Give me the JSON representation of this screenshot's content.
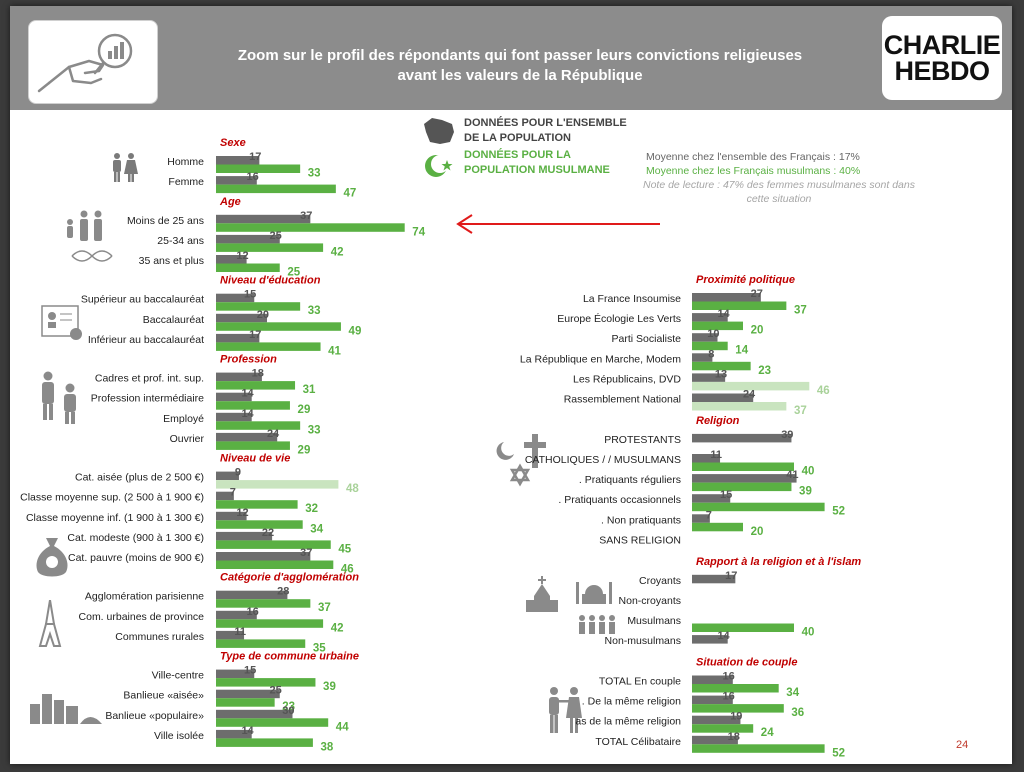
{
  "title_line1": "Zoom sur le profil des répondants qui font passer leurs convictions religieuses",
  "title_line2": "avant les valeurs de la République",
  "logo_line1": "CHARLIE",
  "logo_line2": "HEBDO",
  "legend": {
    "all_line1": "DONNÉES POUR L'ENSEMBLE",
    "all_line2": "DE LA POPULATION",
    "muslim_line1": "DONNÉES POUR LA",
    "muslim_line2": "POPULATION MUSULMANE"
  },
  "notes": {
    "avg_all": "Moyenne chez l'ensemble des Français : 17%",
    "avg_muslim": "Moyenne chez les Français musulmans : 40%",
    "reading_line1": "Note de lecture : 47% des femmes musulmanes sont dans",
    "reading_line2": "cette situation"
  },
  "page_number": "24",
  "colors": {
    "all": "#6d6d6d",
    "muslim": "#5ab043",
    "muslim_light": "#c9e4bf",
    "section_title": "#c00000",
    "arrow": "#e01a1a"
  },
  "chart_data": {
    "type": "bar",
    "orientation": "horizontal",
    "series": [
      {
        "name": "DONNÉES POUR L'ENSEMBLE DE LA POPULATION"
      },
      {
        "name": "DONNÉES POUR LA POPULATION MUSULMANE"
      }
    ],
    "columns": [
      [
        {
          "title": "Sexe",
          "rows": [
            {
              "label": "Homme",
              "all": 17,
              "muslim": 33
            },
            {
              "label": "Femme",
              "all": 16,
              "muslim": 47
            }
          ]
        },
        {
          "title": "Age",
          "rows": [
            {
              "label": "Moins de 25 ans",
              "all": 37,
              "muslim": 74
            },
            {
              "label": "25-34 ans",
              "all": 25,
              "muslim": 42
            },
            {
              "label": "35 ans et plus",
              "all": 12,
              "muslim": 25
            }
          ]
        },
        {
          "title": "Niveau d'éducation",
          "rows": [
            {
              "label": "Supérieur au baccalauréat",
              "all": 15,
              "muslim": 33
            },
            {
              "label": "Baccalauréat",
              "all": 20,
              "muslim": 49
            },
            {
              "label": "Inférieur au baccalauréat",
              "all": 17,
              "muslim": 41
            }
          ]
        },
        {
          "title": "Profession",
          "rows": [
            {
              "label": "Cadres et prof. int. sup.",
              "all": 18,
              "muslim": 31
            },
            {
              "label": "Profession intermédiaire",
              "all": 14,
              "muslim": 29
            },
            {
              "label": "Employé",
              "all": 14,
              "muslim": 33
            },
            {
              "label": "Ouvrier",
              "all": 24,
              "muslim": 29
            }
          ]
        },
        {
          "title": "Niveau de vie",
          "rows": [
            {
              "label": "Cat. aisée (plus de 2 500 €)",
              "all": 9,
              "muslim": 48,
              "muslim_light": true
            },
            {
              "label": "Classe moyenne sup. (2 500 à 1 900 €)",
              "all": 7,
              "muslim": 32
            },
            {
              "label": "Classe moyenne inf. (1 900 à 1 300 €)",
              "all": 12,
              "muslim": 34
            },
            {
              "label": "Cat. modeste (900 à 1 300 €)",
              "all": 22,
              "muslim": 45
            },
            {
              "label": "Cat. pauvre (moins de 900 €)",
              "all": 37,
              "muslim": 46
            }
          ]
        },
        {
          "title": "Catégorie d'agglomération",
          "rows": [
            {
              "label": "Agglomération parisienne",
              "all": 28,
              "muslim": 37
            },
            {
              "label": "Com. urbaines de province",
              "all": 16,
              "muslim": 42
            },
            {
              "label": "Communes rurales",
              "all": 11,
              "muslim": 35
            }
          ]
        },
        {
          "title": "Type de commune urbaine",
          "rows": [
            {
              "label": "Ville-centre",
              "all": 15,
              "muslim": 39
            },
            {
              "label": "Banlieue «aisée»",
              "all": 25,
              "muslim": 23
            },
            {
              "label": "Banlieue «populaire»",
              "all": 30,
              "muslim": 44
            },
            {
              "label": "Ville isolée",
              "all": 14,
              "muslim": 38
            }
          ]
        }
      ],
      [
        {
          "title": "Proximité politique",
          "rows": [
            {
              "label": "La France Insoumise",
              "all": 27,
              "muslim": 37
            },
            {
              "label": "Europe Écologie Les Verts",
              "all": 14,
              "muslim": 20
            },
            {
              "label": "Parti Socialiste",
              "all": 10,
              "muslim": 14
            },
            {
              "label": "La République en Marche, Modem",
              "all": 8,
              "muslim": 23
            },
            {
              "label": "Les Républicains, DVD",
              "all": 13,
              "muslim": 46,
              "muslim_light": true
            },
            {
              "label": "Rassemblement National",
              "all": 24,
              "muslim": 37,
              "muslim_light": true
            }
          ]
        },
        {
          "title": "Religion",
          "rows": [
            {
              "label": "PROTESTANTS",
              "all": 39,
              "muslim": null
            },
            {
              "label": "CATHOLIQUES / / MUSULMANS",
              "all": 11,
              "muslim": 40
            },
            {
              "label": ". Pratiquants réguliers",
              "all": 41,
              "muslim": 39
            },
            {
              "label": ". Pratiquants occasionnels",
              "all": 15,
              "muslim": 52
            },
            {
              "label": ". Non pratiquants",
              "all": 7,
              "muslim": 20
            },
            {
              "label": "SANS RELIGION",
              "all": null,
              "muslim": null
            }
          ]
        },
        {
          "title": "Rapport à la religion et à l'islam",
          "rows": [
            {
              "label": "Croyants",
              "all": 17,
              "muslim": null
            },
            {
              "label": "Non-croyants",
              "all": null,
              "muslim": null
            },
            {
              "label": "Musulmans",
              "all": null,
              "muslim": 40
            },
            {
              "label": "Non-musulmans",
              "all": 14,
              "muslim": null
            }
          ]
        },
        {
          "title": "Situation de couple",
          "rows": [
            {
              "label": "TOTAL En couple",
              "all": 16,
              "muslim": 34
            },
            {
              "label": ". De la même religion",
              "all": 16,
              "muslim": 36
            },
            {
              "label": "as de la même religion",
              "all": 19,
              "muslim": 24
            },
            {
              "label": "TOTAL Célibataire",
              "all": 18,
              "muslim": 52
            }
          ]
        }
      ]
    ]
  }
}
